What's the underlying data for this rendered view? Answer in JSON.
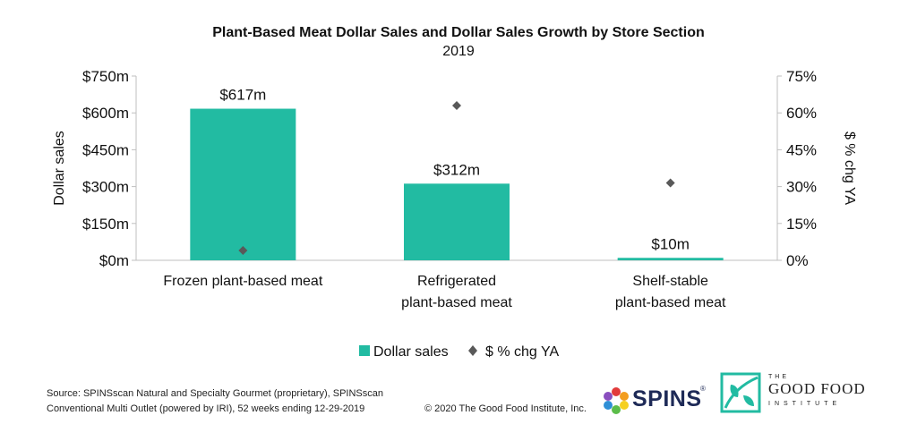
{
  "chart_data": {
    "type": "bar",
    "title": "Plant-Based Meat Dollar Sales and Dollar Sales Growth by Store Section",
    "subtitle": "2019",
    "categories": [
      [
        "Frozen plant-based meat"
      ],
      [
        "Refrigerated",
        "plant-based meat"
      ],
      [
        "Shelf-stable",
        "plant-based meat"
      ]
    ],
    "series": [
      {
        "name": "Dollar sales",
        "type": "bar",
        "axis": "left",
        "color": "#22bba2",
        "values": [
          617,
          312,
          10
        ],
        "data_labels": [
          "$617m",
          "$312m",
          "$10m"
        ]
      },
      {
        "name": "$ % chg YA",
        "type": "scatter",
        "marker": "diamond",
        "axis": "right",
        "color": "#595959",
        "values": [
          4,
          63,
          31.5
        ]
      }
    ],
    "ylabel": "Dollar sales",
    "ylim": [
      0,
      750
    ],
    "yticks": [
      "$0m",
      "$150m",
      "$300m",
      "$450m",
      "$600m",
      "$750m"
    ],
    "y2label": "$ % chg YA",
    "y2lim": [
      0,
      75
    ],
    "y2ticks": [
      "0%",
      "15%",
      "30%",
      "45%",
      "60%",
      "75%"
    ],
    "legend_position": "bottom",
    "grid": false
  },
  "footer": {
    "source_line1": "Source: SPINSscan Natural and Specialty Gourmet (proprietary), SPINSscan",
    "source_line2": "Conventional Multi Outlet (powered by IRI), 52 weeks ending 12-29-2019",
    "copyright": "© 2020 The Good Food Institute, Inc."
  },
  "logos": {
    "spins": {
      "text": "SPINS",
      "mark": "®"
    },
    "gfi": {
      "the": "THE",
      "name": "GOOD FOOD",
      "sub": "INSTITUTE"
    }
  }
}
